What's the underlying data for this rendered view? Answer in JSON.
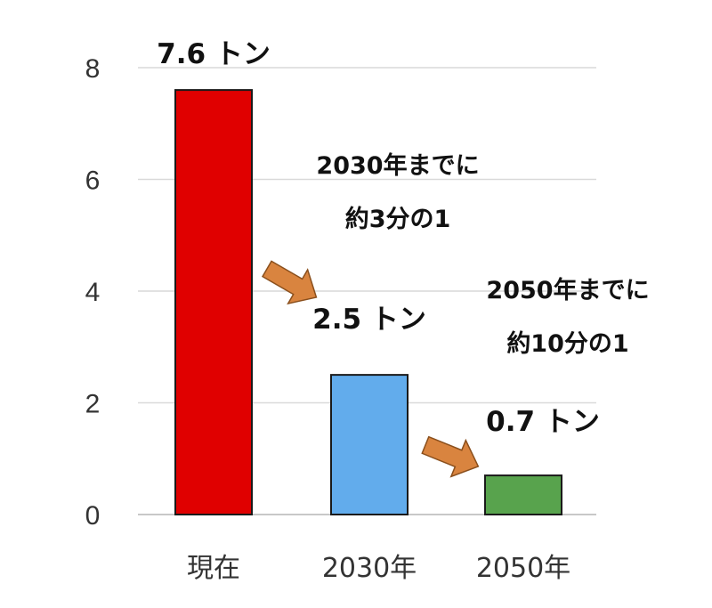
{
  "chart_data": {
    "type": "bar",
    "categories": [
      "現在",
      "2030年",
      "2050年"
    ],
    "values": [
      7.6,
      2.5,
      0.7
    ],
    "ylim": [
      0,
      8
    ],
    "yticks": [
      0,
      2,
      4,
      6,
      8
    ],
    "grid": true,
    "bar_colors": [
      "#e00000",
      "#62acec",
      "#58a34d"
    ],
    "data_labels": [
      "7.6 トン",
      "2.5 トン",
      "0.7 トン"
    ],
    "annotations": [
      {
        "lines": [
          "2030年までに",
          "約3分の1"
        ]
      },
      {
        "lines": [
          "2050年までに",
          "約10分の1"
        ]
      }
    ],
    "arrow_color": "#d9843f"
  }
}
